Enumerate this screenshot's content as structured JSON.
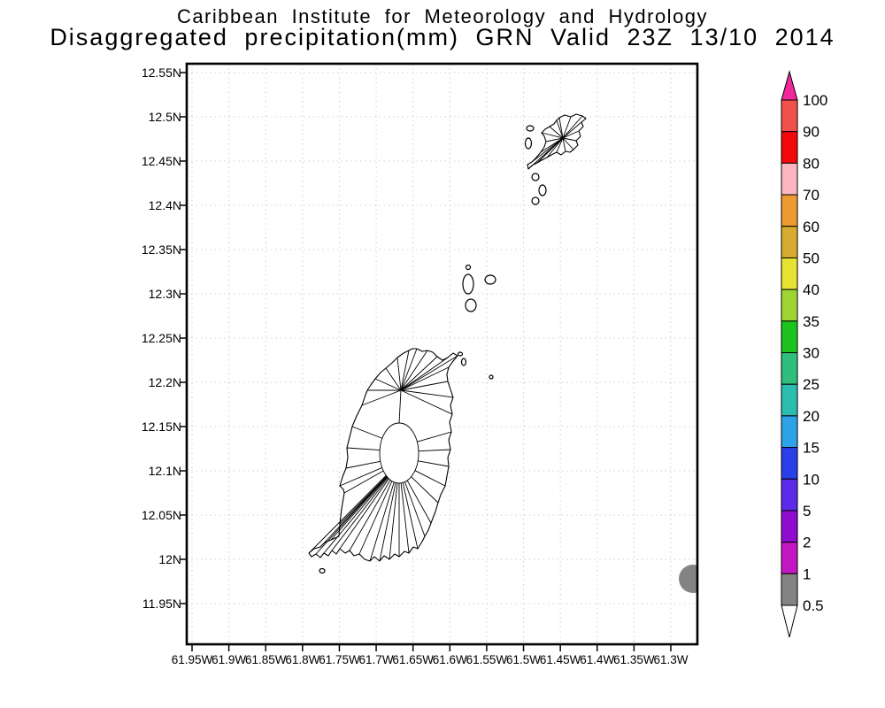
{
  "title": {
    "line1": "Caribbean Institute for Meteorology and Hydrology",
    "line2": "Disaggregated precipitation(mm) GRN Valid 23Z 13/10 2014"
  },
  "map": {
    "y_axis_labels": [
      "12.55N",
      "12.5N",
      "12.45N",
      "12.4N",
      "12.35N",
      "12.3N",
      "12.25N",
      "12.2N",
      "12.15N",
      "12.1N",
      "12.05N",
      "12N",
      "11.95N"
    ],
    "x_axis_labels": [
      "61.95W",
      "61.9W",
      "61.85W",
      "61.8W",
      "61.75W",
      "61.7W",
      "61.65W",
      "61.6W",
      "61.55W",
      "61.5W",
      "61.45W",
      "61.4W",
      "61.35W",
      "61.3W"
    ],
    "grid_color": "#c8c8c8",
    "border_color": "#000000",
    "coastline_color": "#000000",
    "precip_spot": {
      "shape": "circle",
      "color": "#848484",
      "colorbar_bin": "0.5-1 mm"
    }
  },
  "colorbar": {
    "labels": [
      "100",
      "90",
      "80",
      "70",
      "60",
      "50",
      "40",
      "35",
      "30",
      "25",
      "20",
      "15",
      "10",
      "5",
      "2",
      "1",
      "0.5"
    ],
    "top_arrow_color": "#f0289b",
    "bottom_arrow_color": "#ffffff",
    "outline_color": "#000000",
    "segment_colors": [
      "#f2514a",
      "#f20a0a",
      "#fbb6c2",
      "#ee9a32",
      "#d8ab30",
      "#e8e232",
      "#9fd434",
      "#1ec41e",
      "#2fbe7e",
      "#2dbdb0",
      "#2da2e6",
      "#2b3fe8",
      "#5c2be8",
      "#8f0bd0",
      "#c317c3",
      "#848484"
    ]
  }
}
